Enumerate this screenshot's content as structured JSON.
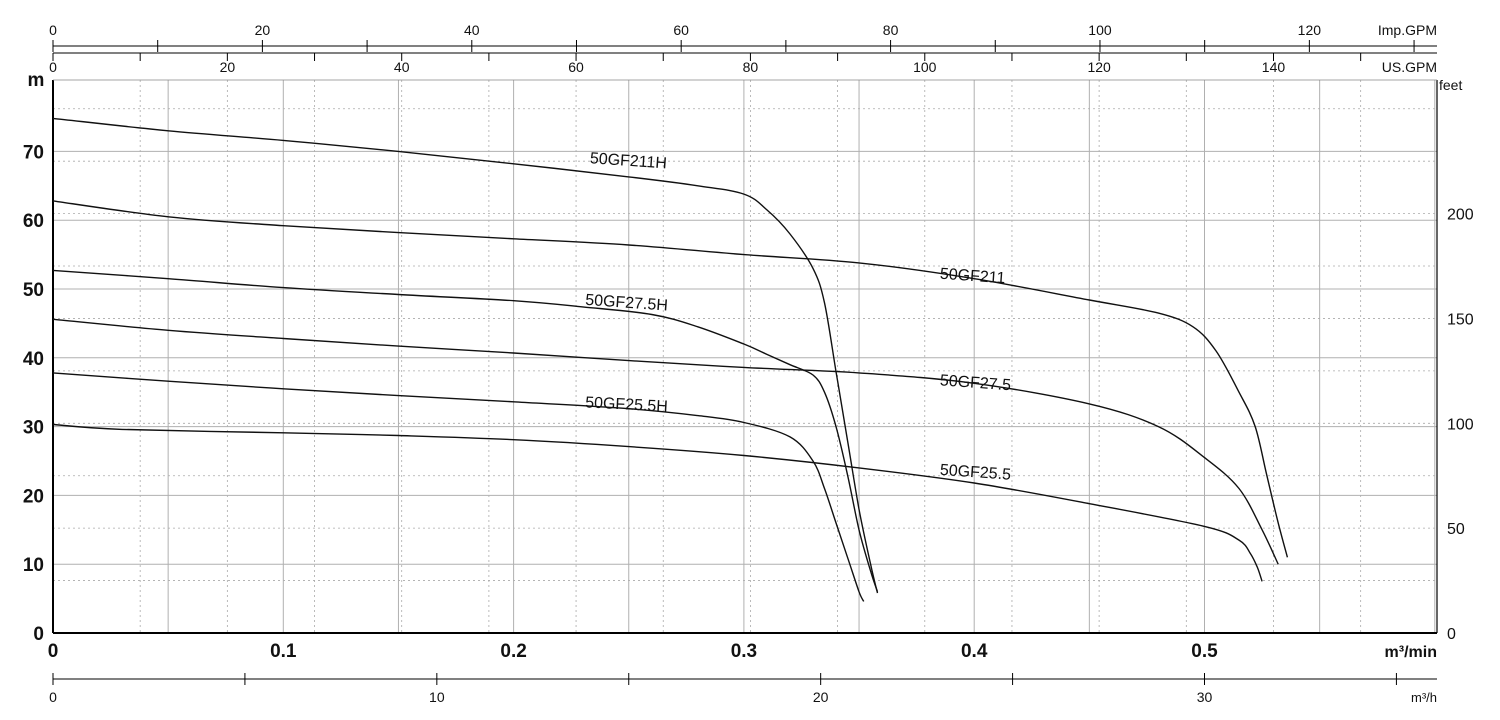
{
  "chart_data": {
    "type": "line",
    "units": {
      "flow_primary": "m³/min",
      "flow_hourly": "m³/h",
      "imp_gpm": "Imp.GPM",
      "us_gpm": "US.GPM",
      "head_m": "m",
      "head_ft": "feet"
    },
    "xlim": [
      0,
      0.6
    ],
    "ylim": [
      0,
      80
    ],
    "x_ticks": [
      {
        "v": 0,
        "label": "0"
      },
      {
        "v": 0.1,
        "label": "0.1"
      },
      {
        "v": 0.2,
        "label": "0.2"
      },
      {
        "v": 0.3,
        "label": "0.3"
      },
      {
        "v": 0.4,
        "label": "0.4"
      },
      {
        "v": 0.5,
        "label": "0.5"
      }
    ],
    "y_ticks": [
      {
        "v": 0,
        "label": "0"
      },
      {
        "v": 10,
        "label": "10"
      },
      {
        "v": 20,
        "label": "20"
      },
      {
        "v": 30,
        "label": "30"
      },
      {
        "v": 40,
        "label": "40"
      },
      {
        "v": 50,
        "label": "50"
      },
      {
        "v": 60,
        "label": "60"
      },
      {
        "v": 70,
        "label": "70"
      }
    ],
    "feet_ticks": [
      {
        "v": 0,
        "label": "0"
      },
      {
        "v": 50,
        "label": "50"
      },
      {
        "v": 100,
        "label": "100"
      },
      {
        "v": 150,
        "label": "150"
      },
      {
        "v": 200,
        "label": "200"
      }
    ],
    "imp_gpm_ticks": [
      {
        "v": 0,
        "label": "0"
      },
      {
        "v": 20,
        "label": "20"
      },
      {
        "v": 40,
        "label": "40"
      },
      {
        "v": 60,
        "label": "60"
      },
      {
        "v": 80,
        "label": "80"
      },
      {
        "v": 100,
        "label": "100"
      },
      {
        "v": 120,
        "label": "120"
      }
    ],
    "us_gpm_ticks": [
      {
        "v": 0,
        "label": "0"
      },
      {
        "v": 20,
        "label": "20"
      },
      {
        "v": 40,
        "label": "40"
      },
      {
        "v": 60,
        "label": "60"
      },
      {
        "v": 80,
        "label": "80"
      },
      {
        "v": 100,
        "label": "100"
      },
      {
        "v": 120,
        "label": "120"
      },
      {
        "v": 140,
        "label": "140"
      }
    ],
    "m3h_ticks": [
      {
        "v": 0,
        "label": "0"
      },
      {
        "v": 10,
        "label": "10"
      },
      {
        "v": 20,
        "label": "20"
      },
      {
        "v": 30,
        "label": "30"
      }
    ],
    "series": [
      {
        "name": "50GF211H",
        "points": [
          [
            0,
            74.8
          ],
          [
            0.05,
            73
          ],
          [
            0.1,
            71.6
          ],
          [
            0.15,
            70
          ],
          [
            0.2,
            68.2
          ],
          [
            0.25,
            66.3
          ],
          [
            0.28,
            65
          ],
          [
            0.3,
            63.8
          ],
          [
            0.31,
            61.5
          ],
          [
            0.32,
            58
          ],
          [
            0.33,
            53
          ],
          [
            0.335,
            48
          ],
          [
            0.34,
            38
          ],
          [
            0.345,
            28
          ],
          [
            0.35,
            18
          ],
          [
            0.355,
            10
          ],
          [
            0.358,
            5.8
          ]
        ]
      },
      {
        "name": "50GF211",
        "points": [
          [
            0,
            62.8
          ],
          [
            0.05,
            60.5
          ],
          [
            0.1,
            59.2
          ],
          [
            0.15,
            58.2
          ],
          [
            0.2,
            57.3
          ],
          [
            0.25,
            56.4
          ],
          [
            0.3,
            55
          ],
          [
            0.35,
            53.8
          ],
          [
            0.4,
            51.5
          ],
          [
            0.45,
            48.4
          ],
          [
            0.48,
            46.5
          ],
          [
            0.495,
            44.5
          ],
          [
            0.505,
            41
          ],
          [
            0.515,
            35
          ],
          [
            0.522,
            30
          ],
          [
            0.527,
            23
          ],
          [
            0.532,
            16
          ],
          [
            0.536,
            11
          ]
        ]
      },
      {
        "name": "50GF27.5H",
        "points": [
          [
            0,
            52.7
          ],
          [
            0.05,
            51.5
          ],
          [
            0.1,
            50.2
          ],
          [
            0.15,
            49.2
          ],
          [
            0.2,
            48.3
          ],
          [
            0.23,
            47.4
          ],
          [
            0.26,
            46.3
          ],
          [
            0.28,
            44.5
          ],
          [
            0.3,
            42
          ],
          [
            0.31,
            40.5
          ],
          [
            0.32,
            39
          ],
          [
            0.33,
            37.5
          ],
          [
            0.335,
            35
          ],
          [
            0.34,
            30
          ],
          [
            0.345,
            23
          ],
          [
            0.35,
            15
          ],
          [
            0.355,
            9
          ],
          [
            0.358,
            6
          ]
        ]
      },
      {
        "name": "50GF27.5",
        "points": [
          [
            0,
            45.6
          ],
          [
            0.05,
            44
          ],
          [
            0.1,
            42.8
          ],
          [
            0.15,
            41.7
          ],
          [
            0.2,
            40.7
          ],
          [
            0.25,
            39.6
          ],
          [
            0.3,
            38.6
          ],
          [
            0.35,
            37.8
          ],
          [
            0.4,
            36.3
          ],
          [
            0.45,
            33.3
          ],
          [
            0.48,
            30
          ],
          [
            0.5,
            25.5
          ],
          [
            0.515,
            21
          ],
          [
            0.525,
            15
          ],
          [
            0.532,
            10
          ]
        ]
      },
      {
        "name": "50GF25.5H",
        "points": [
          [
            0,
            37.8
          ],
          [
            0.05,
            36.6
          ],
          [
            0.1,
            35.5
          ],
          [
            0.15,
            34.5
          ],
          [
            0.2,
            33.6
          ],
          [
            0.25,
            32.6
          ],
          [
            0.28,
            31.6
          ],
          [
            0.3,
            30.6
          ],
          [
            0.32,
            28.5
          ],
          [
            0.33,
            25
          ],
          [
            0.335,
            21
          ],
          [
            0.34,
            16
          ],
          [
            0.345,
            11
          ],
          [
            0.35,
            6
          ],
          [
            0.352,
            4.6
          ]
        ]
      },
      {
        "name": "50GF25.5",
        "points": [
          [
            0,
            30.3
          ],
          [
            0.03,
            29.6
          ],
          [
            0.1,
            29.1
          ],
          [
            0.15,
            28.7
          ],
          [
            0.2,
            28.1
          ],
          [
            0.25,
            27.1
          ],
          [
            0.3,
            25.8
          ],
          [
            0.35,
            24
          ],
          [
            0.4,
            21.8
          ],
          [
            0.45,
            18.8
          ],
          [
            0.5,
            15.5
          ],
          [
            0.515,
            13.5
          ],
          [
            0.52,
            11.5
          ],
          [
            0.523,
            9.5
          ],
          [
            0.525,
            7.5
          ]
        ]
      }
    ],
    "label_positions": [
      {
        "name": "50GF211H",
        "x": 0.233,
        "y": 68.3,
        "rot": 4
      },
      {
        "name": "50GF211",
        "x": 0.385,
        "y": 51.5,
        "rot": 4
      },
      {
        "name": "50GF27.5H",
        "x": 0.231,
        "y": 47.7,
        "rot": 4
      },
      {
        "name": "50GF27.5",
        "x": 0.385,
        "y": 36.0,
        "rot": 4
      },
      {
        "name": "50GF25.5H",
        "x": 0.231,
        "y": 32.8,
        "rot": 3
      },
      {
        "name": "50GF25.5",
        "x": 0.385,
        "y": 23.0,
        "rot": 4
      }
    ],
    "grid": true
  }
}
